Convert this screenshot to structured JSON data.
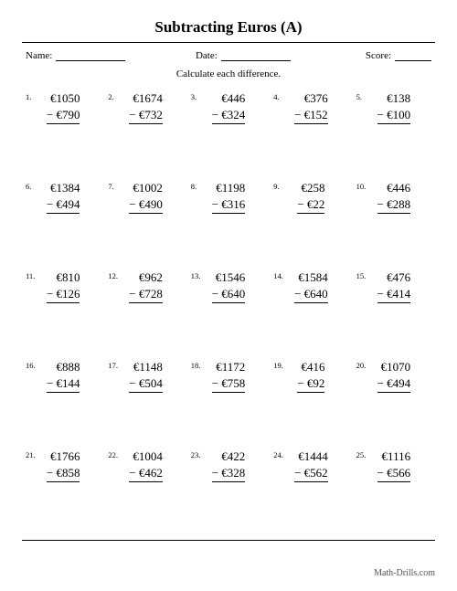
{
  "title": "Subtracting Euros (A)",
  "meta": {
    "name_label": "Name:",
    "date_label": "Date:",
    "score_label": "Score:",
    "name_blank_width": 76,
    "date_blank_width": 76,
    "score_blank_width": 40
  },
  "instruction": "Calculate each difference.",
  "currency": "€",
  "minus_sign": "−",
  "problems": [
    {
      "n": "1.",
      "a": "1050",
      "b": "790"
    },
    {
      "n": "2.",
      "a": "1674",
      "b": "732"
    },
    {
      "n": "3.",
      "a": "446",
      "b": "324"
    },
    {
      "n": "4.",
      "a": "376",
      "b": "152"
    },
    {
      "n": "5.",
      "a": "138",
      "b": "100"
    },
    {
      "n": "6.",
      "a": "1384",
      "b": "494"
    },
    {
      "n": "7.",
      "a": "1002",
      "b": "490"
    },
    {
      "n": "8.",
      "a": "1198",
      "b": "316"
    },
    {
      "n": "9.",
      "a": "258",
      "b": "22"
    },
    {
      "n": "10.",
      "a": "446",
      "b": "288"
    },
    {
      "n": "11.",
      "a": "810",
      "b": "126"
    },
    {
      "n": "12.",
      "a": "962",
      "b": "728"
    },
    {
      "n": "13.",
      "a": "1546",
      "b": "640"
    },
    {
      "n": "14.",
      "a": "1584",
      "b": "640"
    },
    {
      "n": "15.",
      "a": "476",
      "b": "414"
    },
    {
      "n": "16.",
      "a": "888",
      "b": "144"
    },
    {
      "n": "17.",
      "a": "1148",
      "b": "504"
    },
    {
      "n": "18.",
      "a": "1172",
      "b": "758"
    },
    {
      "n": "19.",
      "a": "416",
      "b": "92"
    },
    {
      "n": "20.",
      "a": "1070",
      "b": "494"
    },
    {
      "n": "21.",
      "a": "1766",
      "b": "858"
    },
    {
      "n": "22.",
      "a": "1004",
      "b": "462"
    },
    {
      "n": "23.",
      "a": "422",
      "b": "328"
    },
    {
      "n": "24.",
      "a": "1444",
      "b": "562"
    },
    {
      "n": "25.",
      "a": "1116",
      "b": "566"
    }
  ],
  "footer": "Math-Drills.com"
}
